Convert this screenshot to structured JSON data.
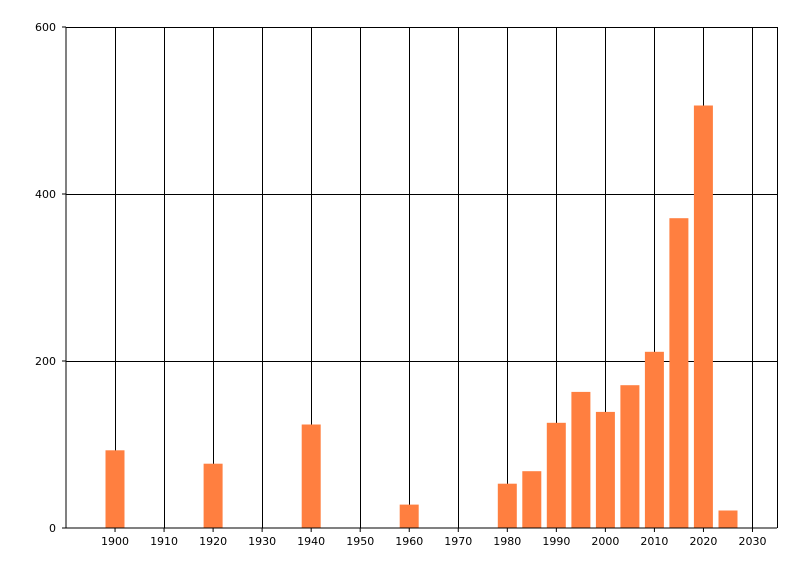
{
  "chart_data": {
    "type": "bar",
    "title": "",
    "xlabel": "",
    "ylabel": "",
    "x": [
      1900,
      1920,
      1940,
      1960,
      1980,
      1985,
      1990,
      1995,
      2000,
      2005,
      2010,
      2015,
      2020,
      2025
    ],
    "values": [
      93,
      77,
      124,
      28,
      53,
      68,
      126,
      163,
      139,
      171,
      211,
      371,
      506,
      21
    ],
    "xlim": [
      1890,
      2035
    ],
    "ylim": [
      0,
      600
    ],
    "x_ticks": [
      1900,
      1910,
      1920,
      1930,
      1940,
      1950,
      1960,
      1970,
      1980,
      1990,
      2000,
      2010,
      2020,
      2030
    ],
    "y_ticks": [
      0,
      200,
      400,
      600
    ],
    "grid": true,
    "bar_color": "#ff7f40",
    "grid_color": "#000000"
  }
}
